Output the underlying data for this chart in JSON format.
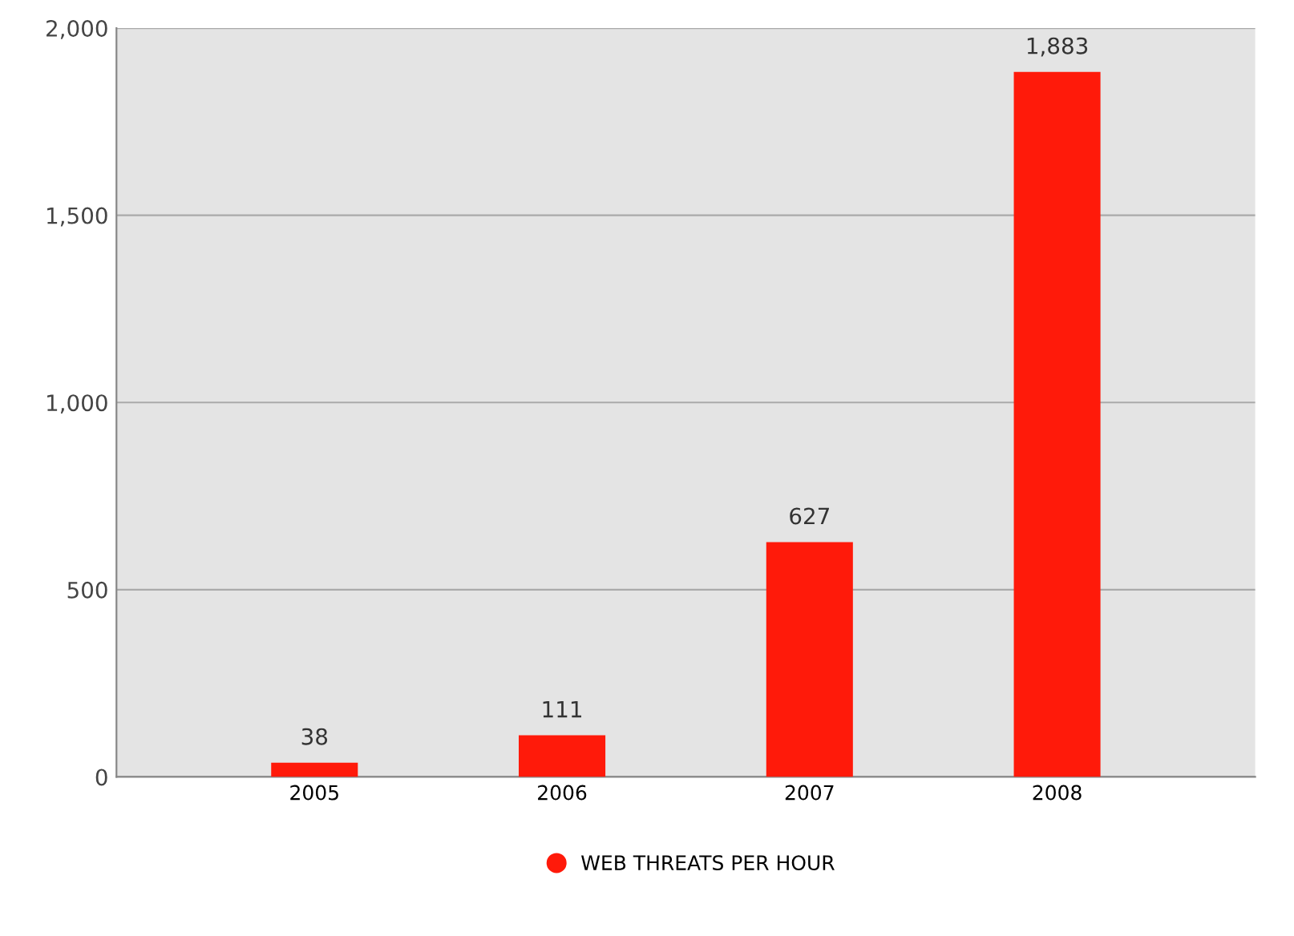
{
  "chart_data": {
    "type": "bar",
    "categories": [
      "2005",
      "2006",
      "2007",
      "2008"
    ],
    "series": [
      {
        "name": "WEB THREATS PER HOUR",
        "color": "#ff1a0a",
        "values": [
          38,
          111,
          627,
          1883
        ],
        "value_labels": [
          "38",
          "111",
          "627",
          "1,883"
        ]
      }
    ],
    "ylim": [
      0,
      2000
    ],
    "yticks": [
      0,
      {
        "value": 500,
        "label": "500"
      },
      {
        "value": 1000,
        "label": "1,000"
      },
      {
        "value": 1500,
        "label": "1,500"
      },
      {
        "value": 2000,
        "label": "2,000"
      }
    ],
    "grid": "y",
    "legend": "bottom"
  }
}
